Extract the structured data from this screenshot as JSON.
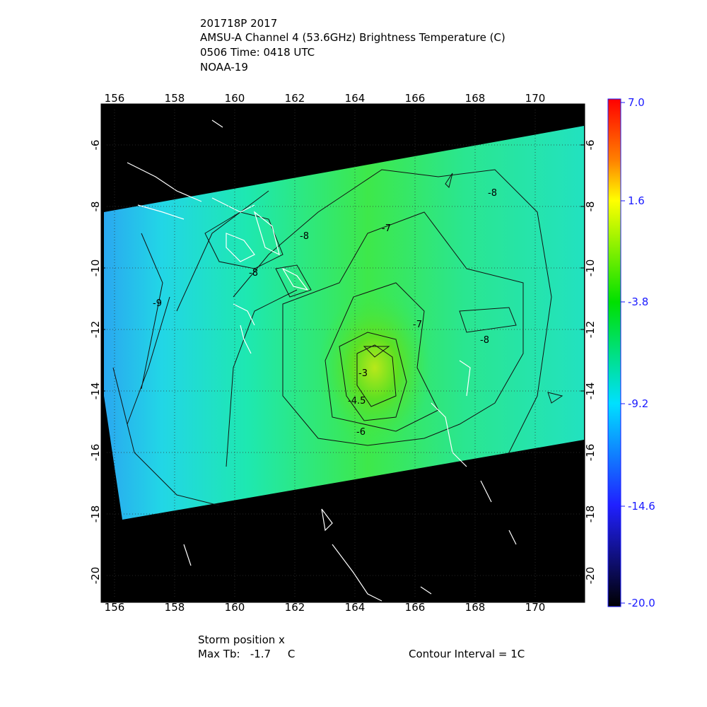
{
  "header": {
    "lines": [
      "201718P 2017",
      "AMSU-A Channel 4 (53.6GHz) Brightness Temperature (C)",
      "0506 Time: 0418 UTC",
      "NOAA-19"
    ]
  },
  "map": {
    "lon_labels": [
      "156",
      "158",
      "160",
      "162",
      "164",
      "166",
      "168",
      "170"
    ],
    "lat_labels": [
      "-6",
      "-8",
      "-10",
      "-12",
      "-14",
      "-16",
      "-18",
      "-20"
    ],
    "contour_labels": [
      "-8",
      "-8",
      "-7",
      "-8",
      "-9",
      "-7",
      "-8",
      "-3",
      "-4.5",
      "-6"
    ]
  },
  "colorbar": {
    "labels": [
      "7.0",
      "1.6",
      "-3.8",
      "-9.2",
      "-14.6",
      "-20.0"
    ]
  },
  "footer": {
    "storm_position": "Storm position x",
    "max_tb": "Max Tb:   -1.7     C",
    "contour_interval": "Contour Interval = 1C"
  }
}
